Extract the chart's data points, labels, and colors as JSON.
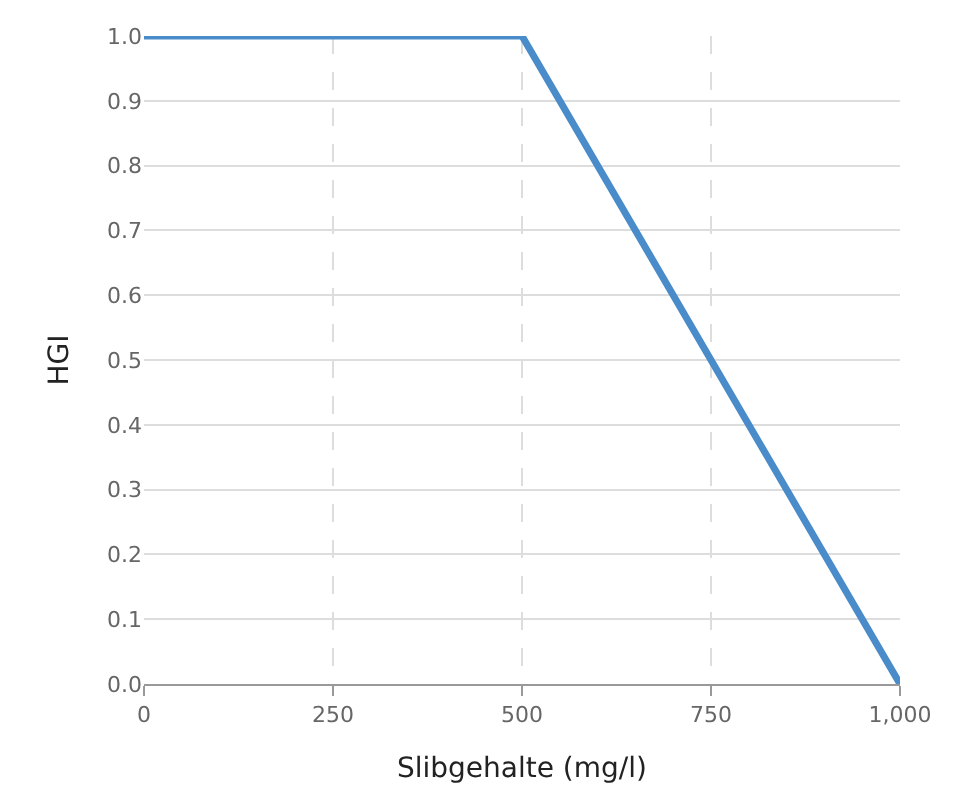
{
  "chart_data": {
    "type": "line",
    "xlabel": "Slibgehalte (mg/l)",
    "ylabel": "HGI",
    "x": [
      0,
      500,
      1000
    ],
    "series": [
      {
        "color": "#4a8bc9",
        "values": [
          1,
          1,
          0
        ]
      }
    ],
    "xlim": [
      0,
      1000
    ],
    "ylim": [
      0,
      1
    ],
    "xticks": [
      0,
      250,
      500,
      750,
      {
        "value": 1000,
        "label": "1,000"
      }
    ],
    "yticks": [
      {
        "value": 0,
        "label": "0.0"
      },
      {
        "value": 0.1,
        "label": "0.1"
      },
      {
        "value": 0.2,
        "label": "0.2"
      },
      {
        "value": 0.3,
        "label": "0.3"
      },
      {
        "value": 0.4,
        "label": "0.4"
      },
      {
        "value": 0.5,
        "label": "0.5"
      },
      {
        "value": 0.6,
        "label": "0.6"
      },
      {
        "value": 0.7,
        "label": "0.7"
      },
      {
        "value": 0.8,
        "label": "0.8"
      },
      {
        "value": 0.9,
        "label": "0.9"
      },
      {
        "value": 1,
        "label": "1.0"
      }
    ],
    "grid": true,
    "legend": false,
    "marker": "none",
    "line_style": "solid"
  }
}
